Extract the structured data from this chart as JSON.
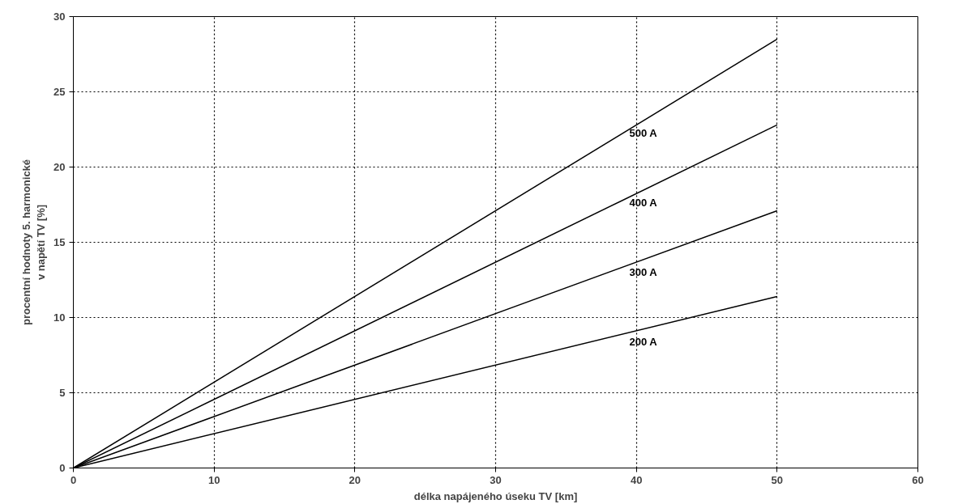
{
  "chart_data": {
    "type": "line",
    "xlabel": "délka napájeného úseku TV [km]",
    "ylabel": "procentní hodnoty 5. harmonické\nv napětí TV [%]",
    "x": [
      0,
      50
    ],
    "series": [
      {
        "name": "500 A",
        "color": "#000000",
        "values": [
          0,
          28.5
        ]
      },
      {
        "name": "400 A",
        "color": "#000000",
        "values": [
          0,
          22.8
        ]
      },
      {
        "name": "300 A",
        "color": "#000000",
        "values": [
          0,
          17.1
        ]
      },
      {
        "name": "200 A",
        "color": "#000000",
        "values": [
          0,
          11.4
        ]
      }
    ],
    "xlim": [
      0,
      60
    ],
    "xticks": [
      0,
      10,
      20,
      30,
      40,
      50,
      60
    ],
    "ylim": [
      0,
      30
    ],
    "yticks": [
      0,
      5,
      10,
      15,
      20,
      25,
      30
    ],
    "grid": true,
    "line_style": "solid",
    "marker": "none"
  }
}
